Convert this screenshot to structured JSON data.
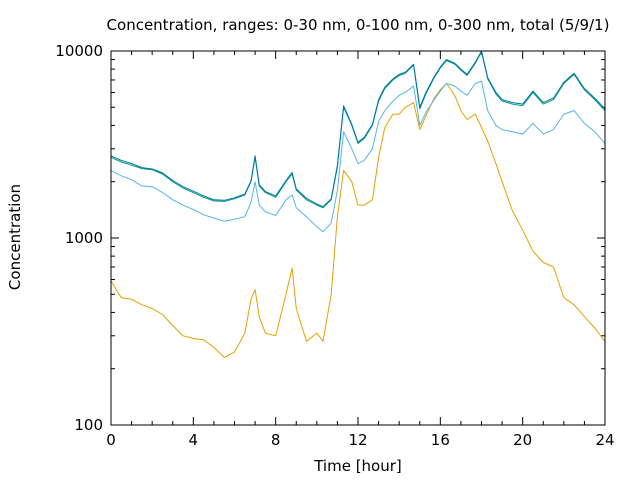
{
  "chart_data": {
    "type": "line",
    "title": "Concentration, ranges: 0-30 nm, 0-100 nm, 0-300 nm, total (5/9/1)",
    "xlabel": "Time [hour]",
    "ylabel": "Concentration",
    "xlim": [
      0,
      24
    ],
    "ylim": [
      100,
      10000
    ],
    "yscale": "log",
    "grid": false,
    "legend": "none",
    "x_ticks": [
      0,
      4,
      8,
      12,
      16,
      20,
      24
    ],
    "x_tick_labels": [
      "0",
      "4",
      "8",
      "12",
      "16",
      "20",
      "24"
    ],
    "y_ticks": [
      100,
      1000,
      10000
    ],
    "y_tick_labels": [
      "100",
      "1000",
      "10000"
    ],
    "x": [
      0,
      0.5,
      1,
      1.5,
      2,
      2.5,
      3,
      3.5,
      4,
      4.5,
      5,
      5.5,
      6,
      6.5,
      6.8,
      7,
      7.2,
      7.5,
      8,
      8.5,
      8.8,
      9,
      9.5,
      10,
      10.3,
      10.7,
      11,
      11.3,
      11.7,
      12,
      12.3,
      12.7,
      13,
      13.3,
      13.7,
      14,
      14.3,
      14.7,
      15,
      15.3,
      15.7,
      16,
      16.3,
      16.7,
      17,
      17.3,
      17.7,
      18,
      18.3,
      18.7,
      19,
      19.5,
      20,
      20.5,
      21,
      21.5,
      22,
      22.5,
      23,
      23.5,
      24
    ],
    "series": [
      {
        "color": "#e5a000",
        "values": [
          590,
          480,
          470,
          440,
          420,
          390,
          340,
          300,
          290,
          285,
          260,
          230,
          245,
          310,
          470,
          530,
          380,
          310,
          300,
          500,
          690,
          420,
          280,
          310,
          280,
          500,
          1300,
          2300,
          2000,
          1500,
          1500,
          1600,
          2700,
          3900,
          4600,
          4600,
          5000,
          5300,
          3800,
          4500,
          5600,
          6200,
          6700,
          5800,
          4800,
          4300,
          4600,
          3900,
          3300,
          2500,
          2000,
          1400,
          1100,
          850,
          740,
          700,
          480,
          440,
          380,
          330,
          280
        ]
      },
      {
        "color": "#56b4e9",
        "values": [
          2300,
          2150,
          2050,
          1900,
          1880,
          1750,
          1600,
          1500,
          1420,
          1330,
          1280,
          1230,
          1260,
          1300,
          1550,
          2000,
          1500,
          1380,
          1320,
          1600,
          1700,
          1450,
          1300,
          1150,
          1080,
          1200,
          1800,
          3700,
          3000,
          2500,
          2600,
          3000,
          4200,
          4800,
          5400,
          5800,
          6000,
          6500,
          4000,
          4700,
          5500,
          6100,
          6700,
          6500,
          6100,
          5800,
          6700,
          6900,
          4800,
          4000,
          3800,
          3700,
          3600,
          4100,
          3600,
          3800,
          4600,
          4800,
          4100,
          3700,
          3200
        ]
      },
      {
        "color": "#009e73",
        "values": [
          2700,
          2550,
          2450,
          2350,
          2320,
          2200,
          2000,
          1850,
          1750,
          1650,
          1580,
          1570,
          1620,
          1700,
          2000,
          2700,
          1900,
          1750,
          1650,
          2000,
          2200,
          1800,
          1600,
          1500,
          1450,
          1600,
          2400,
          5000,
          4000,
          3200,
          3400,
          4000,
          5400,
          6300,
          7000,
          7400,
          7600,
          8400,
          4900,
          5900,
          7200,
          8100,
          8900,
          8500,
          7900,
          7400,
          8600,
          9900,
          7100,
          5900,
          5400,
          5200,
          5100,
          6000,
          5200,
          5500,
          6700,
          7500,
          6200,
          5500,
          4800
        ]
      },
      {
        "color": "#0072b2",
        "values": [
          2750,
          2600,
          2500,
          2380,
          2340,
          2230,
          2030,
          1880,
          1780,
          1680,
          1600,
          1590,
          1640,
          1720,
          2020,
          2750,
          1930,
          1770,
          1680,
          2030,
          2240,
          1830,
          1630,
          1520,
          1470,
          1620,
          2450,
          5100,
          4050,
          3250,
          3450,
          4050,
          5500,
          6400,
          7100,
          7500,
          7700,
          8500,
          5000,
          6000,
          7300,
          8200,
          9000,
          8600,
          8000,
          7500,
          8700,
          10000,
          7200,
          6000,
          5500,
          5300,
          5200,
          6100,
          5300,
          5600,
          6800,
          7600,
          6300,
          5600,
          4900
        ]
      }
    ]
  }
}
